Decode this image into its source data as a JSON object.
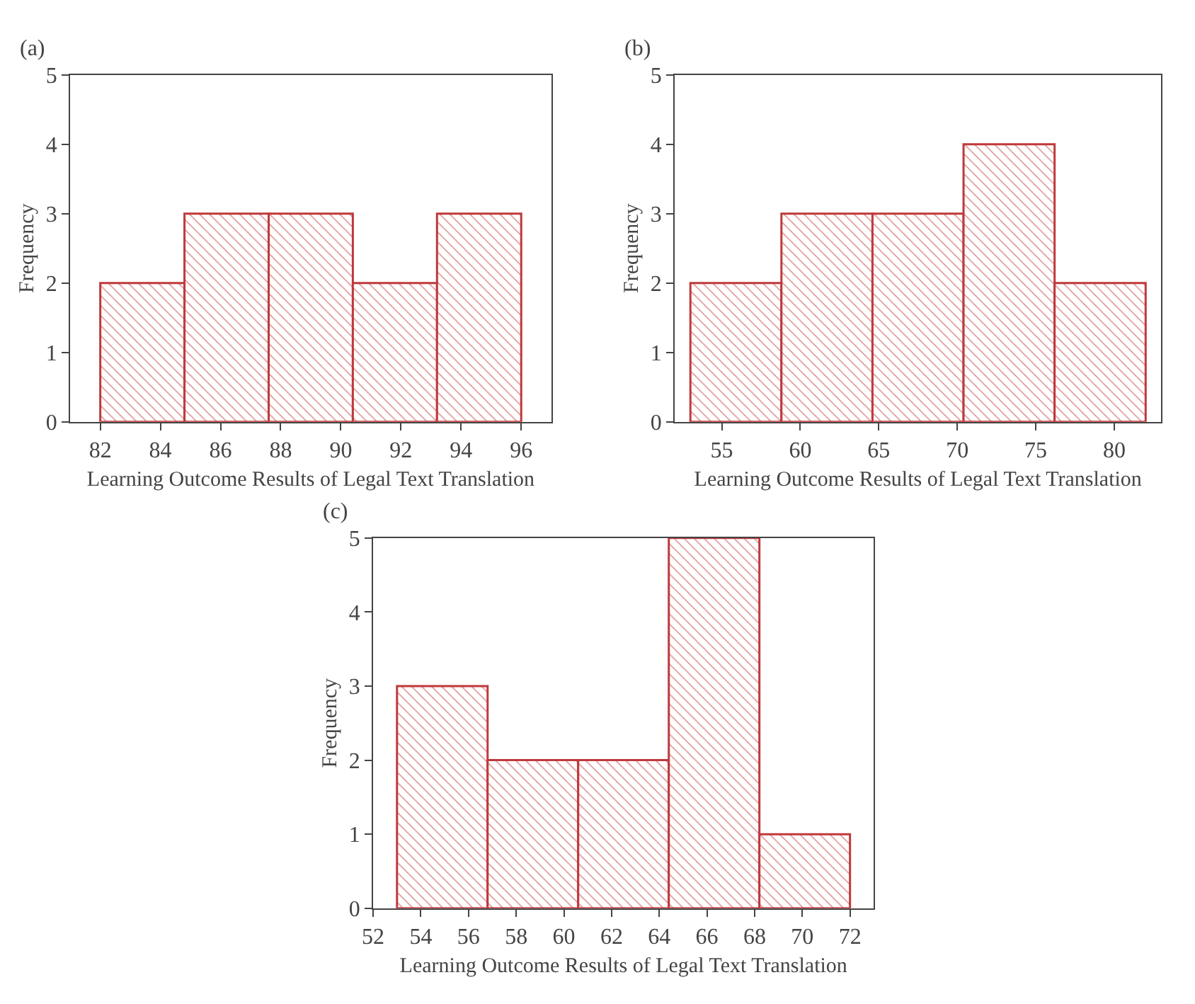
{
  "chart_data": [
    {
      "type": "histogram",
      "title": "(a)",
      "xlabel": "Learning Outcome Results of Legal Text Translation",
      "ylabel": "Frequency",
      "bins": [
        82,
        84.8,
        87.6,
        90.4,
        93.2,
        96
      ],
      "values": [
        2,
        3,
        3,
        2,
        3
      ],
      "color": "#c0393b",
      "xlim": [
        81,
        97
      ],
      "xticks": [
        82,
        84,
        86,
        88,
        90,
        92,
        94,
        96
      ],
      "ylim": [
        0,
        5
      ],
      "yticks": [
        0,
        1,
        2,
        3,
        4,
        5
      ],
      "grid": false,
      "legend": false
    },
    {
      "type": "histogram",
      "title": "(b)",
      "xlabel": "Learning Outcome Results of Legal Text Translation",
      "ylabel": "Frequency",
      "bins": [
        53,
        58.8,
        64.6,
        70.4,
        76.2,
        82
      ],
      "values": [
        2,
        3,
        3,
        4,
        2
      ],
      "color": "#c0393b",
      "xlim": [
        52,
        83
      ],
      "xticks": [
        55,
        60,
        65,
        70,
        75,
        80
      ],
      "ylim": [
        0,
        5
      ],
      "yticks": [
        0,
        1,
        2,
        3,
        4,
        5
      ],
      "grid": false,
      "legend": false
    },
    {
      "type": "histogram",
      "title": "(c)",
      "xlabel": "Learning Outcome Results of Legal Text Translation",
      "ylabel": "Frequency",
      "bins": [
        53,
        56.8,
        60.6,
        64.4,
        68.2,
        72
      ],
      "values": [
        3,
        2,
        2,
        5,
        1
      ],
      "color": "#c0393b",
      "xlim": [
        52,
        73
      ],
      "xticks": [
        52,
        54,
        56,
        58,
        60,
        62,
        64,
        66,
        68,
        70,
        72
      ],
      "ylim": [
        0,
        5
      ],
      "yticks": [
        0,
        1,
        2,
        3,
        4,
        5
      ],
      "grid": false,
      "legend": false
    }
  ]
}
